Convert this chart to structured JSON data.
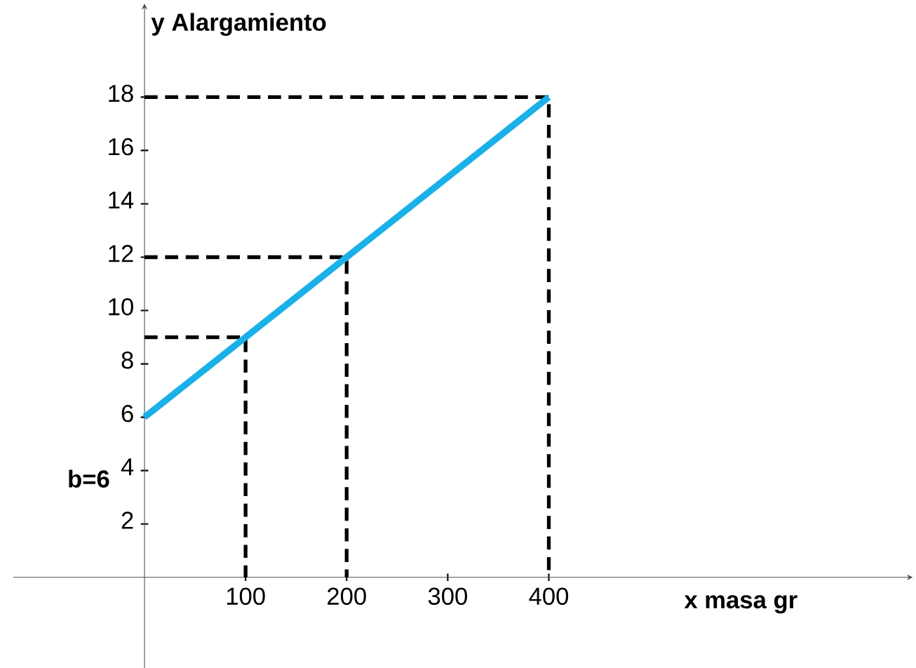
{
  "chart_data": {
    "type": "line",
    "xlabel": "x masa gr",
    "ylabel": "y Alargamiento",
    "annotations": [
      "b=6"
    ],
    "xlim": [
      -130,
      760
    ],
    "ylim": [
      -3.4,
      21.5
    ],
    "xticks": [
      100,
      200,
      300,
      400
    ],
    "yticks": [
      2,
      4,
      6,
      8,
      10,
      12,
      14,
      16,
      18
    ],
    "series": [
      {
        "type": "line",
        "color": "#1ab0e8",
        "x": [
          0,
          400
        ],
        "values": [
          6,
          18
        ]
      },
      {
        "type": "line",
        "color": "#000000",
        "line_style": "dashed",
        "x": [
          0,
          100,
          100
        ],
        "values": [
          9,
          9,
          0
        ]
      },
      {
        "type": "line",
        "color": "#000000",
        "line_style": "dashed",
        "x": [
          0,
          200,
          200
        ],
        "values": [
          12,
          12,
          0
        ]
      },
      {
        "type": "line",
        "color": "#000000",
        "line_style": "dashed",
        "x": [
          0,
          400,
          400
        ],
        "values": [
          18,
          18,
          0
        ]
      }
    ]
  }
}
